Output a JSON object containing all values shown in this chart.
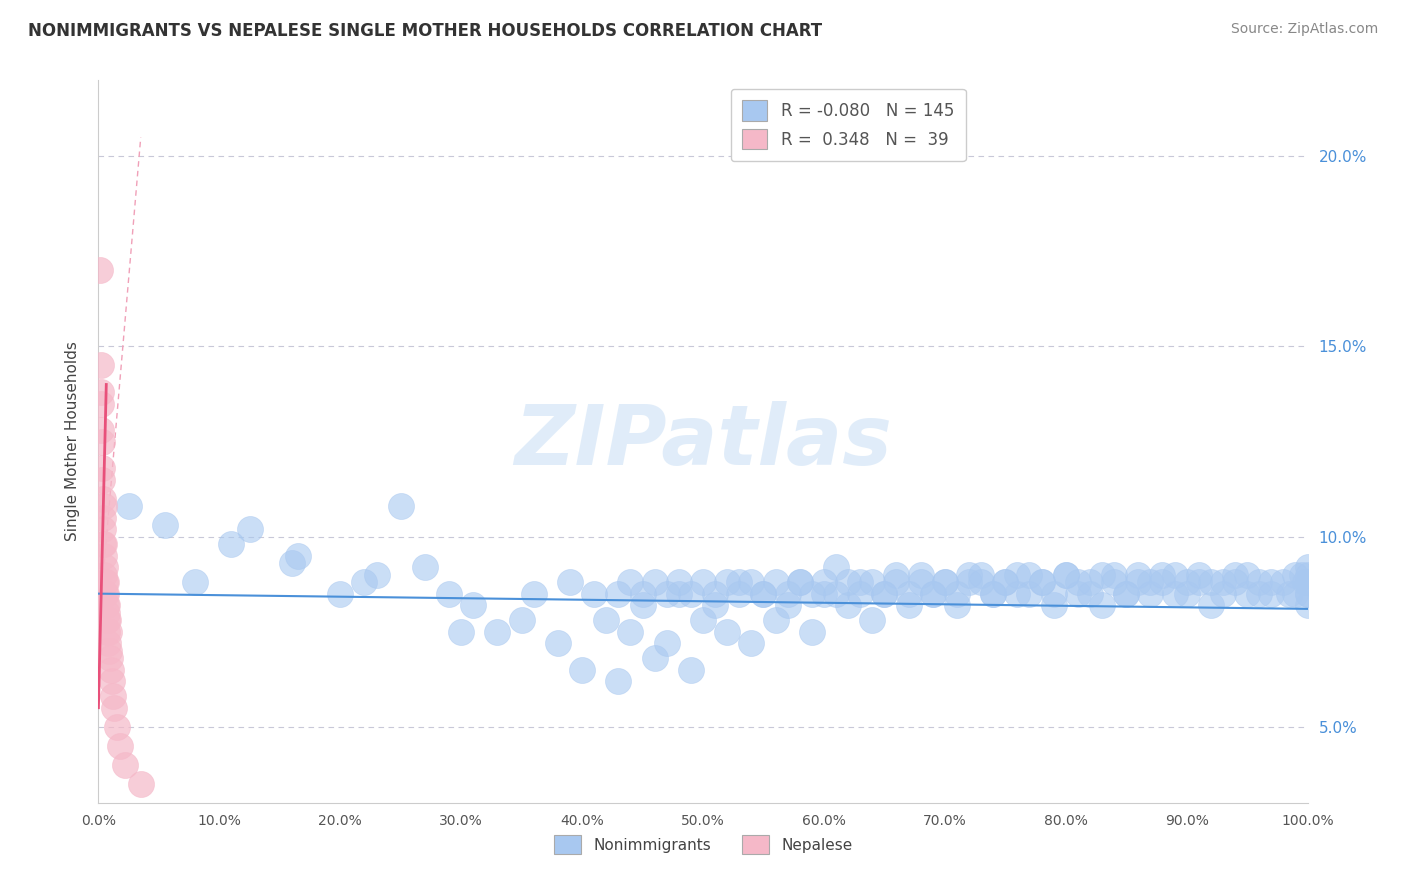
{
  "title": "NONIMMIGRANTS VS NEPALESE SINGLE MOTHER HOUSEHOLDS CORRELATION CHART",
  "source": "Source: ZipAtlas.com",
  "ylabel": "Single Mother Households",
  "legend_blue_r": "-0.080",
  "legend_blue_n": "145",
  "legend_pink_r": "0.348",
  "legend_pink_n": "39",
  "watermark": "ZIPatlas",
  "blue_color": "#a8c8f0",
  "pink_color": "#f5b8c8",
  "blue_line_color": "#4a90d9",
  "pink_line_color": "#e8507a",
  "pink_dash_color": "#f0a0b8",
  "gray_dash_color": "#c8c8d8",
  "xlim": [
    0,
    100
  ],
  "ylim": [
    3.0,
    22.0
  ],
  "y_tick_positions": [
    5.0,
    10.0,
    15.0,
    20.0
  ],
  "y_tick_labels": [
    "5.0%",
    "10.0%",
    "15.0%",
    "20.0%"
  ],
  "x_tick_positions": [
    0,
    10,
    20,
    30,
    40,
    50,
    60,
    70,
    80,
    90,
    100
  ],
  "bg_color": "#ffffff",
  "blue_scatter": [
    [
      2.5,
      10.8
    ],
    [
      5.5,
      10.3
    ],
    [
      8.0,
      8.8
    ],
    [
      11.0,
      9.8
    ],
    [
      12.5,
      10.2
    ],
    [
      16.0,
      9.3
    ],
    [
      16.5,
      9.5
    ],
    [
      20.0,
      8.5
    ],
    [
      22.0,
      8.8
    ],
    [
      23.0,
      9.0
    ],
    [
      25.0,
      10.8
    ],
    [
      27.0,
      9.2
    ],
    [
      29.0,
      8.5
    ],
    [
      30.0,
      7.5
    ],
    [
      31.0,
      8.2
    ],
    [
      33.0,
      7.5
    ],
    [
      35.0,
      7.8
    ],
    [
      36.0,
      8.5
    ],
    [
      38.0,
      7.2
    ],
    [
      39.0,
      8.8
    ],
    [
      40.0,
      6.5
    ],
    [
      41.0,
      8.5
    ],
    [
      42.0,
      7.8
    ],
    [
      43.0,
      6.2
    ],
    [
      44.0,
      7.5
    ],
    [
      45.0,
      8.2
    ],
    [
      46.0,
      6.8
    ],
    [
      47.0,
      7.2
    ],
    [
      48.0,
      8.5
    ],
    [
      49.0,
      6.5
    ],
    [
      50.0,
      7.8
    ],
    [
      51.0,
      8.2
    ],
    [
      52.0,
      7.5
    ],
    [
      53.0,
      8.8
    ],
    [
      54.0,
      7.2
    ],
    [
      55.0,
      8.5
    ],
    [
      56.0,
      7.8
    ],
    [
      57.0,
      8.2
    ],
    [
      58.0,
      8.8
    ],
    [
      59.0,
      7.5
    ],
    [
      60.0,
      8.5
    ],
    [
      61.0,
      9.2
    ],
    [
      62.0,
      8.2
    ],
    [
      63.0,
      8.8
    ],
    [
      64.0,
      7.8
    ],
    [
      65.0,
      8.5
    ],
    [
      66.0,
      9.0
    ],
    [
      67.0,
      8.2
    ],
    [
      68.0,
      9.0
    ],
    [
      69.0,
      8.5
    ],
    [
      70.0,
      8.8
    ],
    [
      71.0,
      8.2
    ],
    [
      72.0,
      8.8
    ],
    [
      73.0,
      9.0
    ],
    [
      74.0,
      8.5
    ],
    [
      75.0,
      8.8
    ],
    [
      76.0,
      9.0
    ],
    [
      77.0,
      8.5
    ],
    [
      78.0,
      8.8
    ],
    [
      79.0,
      8.2
    ],
    [
      80.0,
      9.0
    ],
    [
      81.0,
      8.5
    ],
    [
      82.0,
      8.8
    ],
    [
      83.0,
      8.2
    ],
    [
      84.0,
      9.0
    ],
    [
      85.0,
      8.5
    ],
    [
      86.0,
      8.8
    ],
    [
      87.0,
      8.5
    ],
    [
      88.0,
      8.8
    ],
    [
      89.0,
      9.0
    ],
    [
      90.0,
      8.5
    ],
    [
      91.0,
      8.8
    ],
    [
      92.0,
      8.2
    ],
    [
      93.0,
      8.8
    ],
    [
      94.0,
      9.0
    ],
    [
      95.0,
      8.5
    ],
    [
      96.0,
      8.8
    ],
    [
      97.0,
      8.5
    ],
    [
      98.0,
      8.8
    ],
    [
      99.0,
      8.5
    ],
    [
      99.5,
      9.0
    ],
    [
      99.8,
      8.8
    ],
    [
      100.0,
      8.5
    ],
    [
      100.0,
      8.8
    ],
    [
      100.0,
      9.0
    ],
    [
      100.0,
      9.2
    ],
    [
      100.0,
      8.2
    ],
    [
      100.0,
      8.5
    ],
    [
      99.0,
      9.0
    ],
    [
      98.5,
      8.5
    ],
    [
      97.0,
      8.8
    ],
    [
      96.0,
      8.5
    ],
    [
      95.0,
      9.0
    ],
    [
      94.0,
      8.8
    ],
    [
      93.0,
      8.5
    ],
    [
      92.0,
      8.8
    ],
    [
      91.0,
      9.0
    ],
    [
      90.0,
      8.8
    ],
    [
      89.0,
      8.5
    ],
    [
      88.0,
      9.0
    ],
    [
      87.0,
      8.8
    ],
    [
      86.0,
      9.0
    ],
    [
      85.0,
      8.5
    ],
    [
      84.0,
      8.8
    ],
    [
      83.0,
      9.0
    ],
    [
      82.0,
      8.5
    ],
    [
      81.0,
      8.8
    ],
    [
      80.0,
      9.0
    ],
    [
      79.0,
      8.5
    ],
    [
      78.0,
      8.8
    ],
    [
      77.0,
      9.0
    ],
    [
      76.0,
      8.5
    ],
    [
      75.0,
      8.8
    ],
    [
      74.0,
      8.5
    ],
    [
      73.0,
      8.8
    ],
    [
      72.0,
      9.0
    ],
    [
      71.0,
      8.5
    ],
    [
      70.0,
      8.8
    ],
    [
      69.0,
      8.5
    ],
    [
      68.0,
      8.8
    ],
    [
      67.0,
      8.5
    ],
    [
      66.0,
      8.8
    ],
    [
      65.0,
      8.5
    ],
    [
      64.0,
      8.8
    ],
    [
      63.0,
      8.5
    ],
    [
      62.0,
      8.8
    ],
    [
      61.0,
      8.5
    ],
    [
      60.0,
      8.8
    ],
    [
      59.0,
      8.5
    ],
    [
      58.0,
      8.8
    ],
    [
      57.0,
      8.5
    ],
    [
      56.0,
      8.8
    ],
    [
      55.0,
      8.5
    ],
    [
      54.0,
      8.8
    ],
    [
      53.0,
      8.5
    ],
    [
      52.0,
      8.8
    ],
    [
      51.0,
      8.5
    ],
    [
      50.0,
      8.8
    ],
    [
      49.0,
      8.5
    ],
    [
      48.0,
      8.8
    ],
    [
      47.0,
      8.5
    ],
    [
      46.0,
      8.8
    ],
    [
      45.0,
      8.5
    ],
    [
      44.0,
      8.8
    ],
    [
      43.0,
      8.5
    ]
  ],
  "pink_scatter": [
    [
      0.15,
      17.0
    ],
    [
      0.18,
      14.5
    ],
    [
      0.2,
      13.5
    ],
    [
      0.22,
      12.8
    ],
    [
      0.25,
      13.8
    ],
    [
      0.28,
      11.5
    ],
    [
      0.3,
      12.5
    ],
    [
      0.32,
      11.8
    ],
    [
      0.35,
      10.5
    ],
    [
      0.38,
      11.0
    ],
    [
      0.4,
      10.2
    ],
    [
      0.42,
      9.8
    ],
    [
      0.45,
      10.8
    ],
    [
      0.48,
      9.5
    ],
    [
      0.5,
      9.8
    ],
    [
      0.5,
      9.0
    ],
    [
      0.52,
      8.8
    ],
    [
      0.55,
      9.2
    ],
    [
      0.58,
      8.5
    ],
    [
      0.6,
      8.8
    ],
    [
      0.62,
      8.2
    ],
    [
      0.65,
      8.5
    ],
    [
      0.68,
      8.0
    ],
    [
      0.7,
      8.2
    ],
    [
      0.72,
      7.8
    ],
    [
      0.75,
      7.5
    ],
    [
      0.78,
      7.8
    ],
    [
      0.8,
      7.2
    ],
    [
      0.85,
      7.5
    ],
    [
      0.9,
      7.0
    ],
    [
      0.95,
      6.8
    ],
    [
      1.0,
      6.5
    ],
    [
      1.1,
      6.2
    ],
    [
      1.2,
      5.8
    ],
    [
      1.3,
      5.5
    ],
    [
      1.5,
      5.0
    ],
    [
      1.8,
      4.5
    ],
    [
      2.2,
      4.0
    ],
    [
      3.5,
      3.5
    ]
  ],
  "blue_line_y0": 8.5,
  "blue_line_y1": 8.1,
  "pink_line_x0": 0.0,
  "pink_line_y0": 5.5,
  "pink_line_x1": 0.65,
  "pink_line_y1": 14.0,
  "pink_dash_x0": 0.0,
  "pink_dash_y0": 7.5,
  "pink_dash_x1": 3.5,
  "pink_dash_y1": 20.5
}
